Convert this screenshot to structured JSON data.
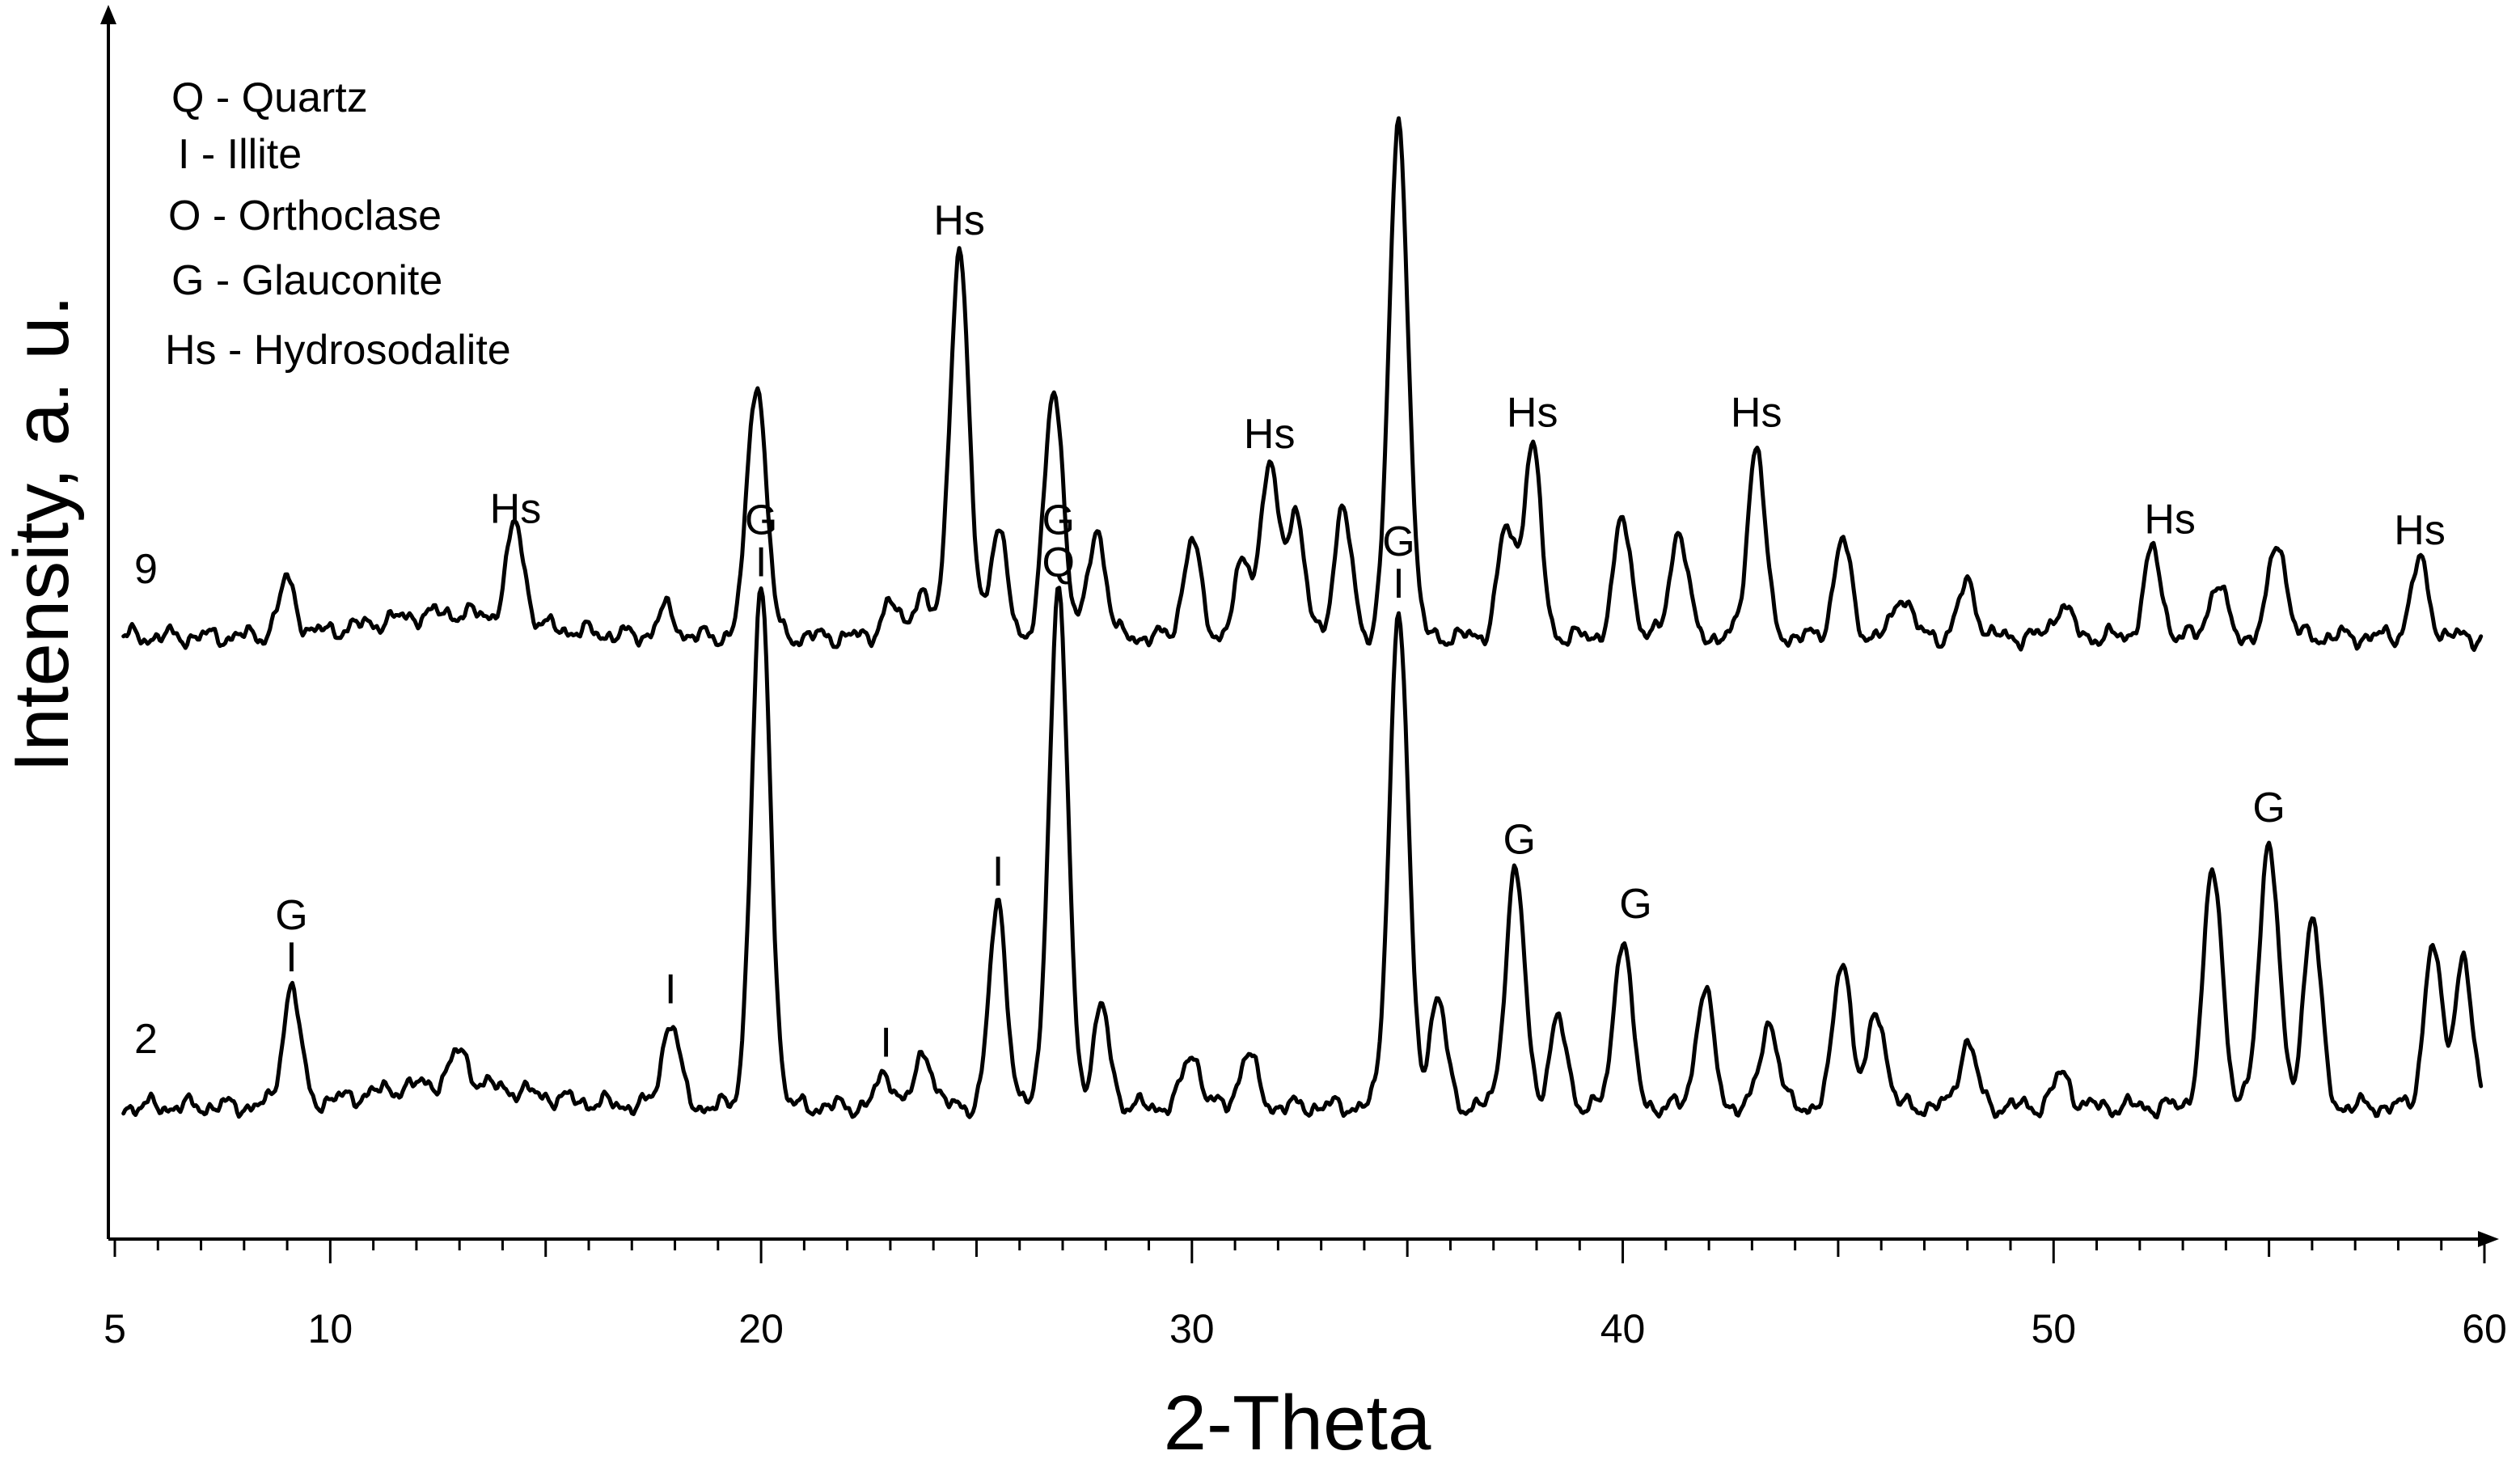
{
  "chart_data": {
    "type": "line",
    "xlabel": "2-Theta",
    "ylabel": "Intensity, a. u.",
    "xlim": [
      5,
      60
    ],
    "ylim": [
      0,
      100
    ],
    "x_ticks": [
      5,
      10,
      20,
      30,
      40,
      50,
      60
    ],
    "y_ticks_shown": false,
    "legend": {
      "position": "top-left",
      "entries": [
        "Q - Quartz",
        "I - Illite",
        "O - Orthoclase",
        "G - Glauconite",
        "Hs - Hydrosodalite"
      ]
    },
    "series": [
      {
        "name": "9",
        "baseline": 54,
        "peaks": [
          [
            9.0,
            5
          ],
          [
            14.3,
            9
          ],
          [
            17.8,
            2.5
          ],
          [
            19.9,
            24
          ],
          [
            23.0,
            3
          ],
          [
            23.7,
            4
          ],
          [
            24.6,
            36
          ],
          [
            25.5,
            10
          ],
          [
            26.8,
            23
          ],
          [
            27.8,
            10
          ],
          [
            30.0,
            9
          ],
          [
            31.2,
            7
          ],
          [
            31.8,
            16
          ],
          [
            32.4,
            12
          ],
          [
            33.5,
            12
          ],
          [
            34.8,
            48
          ],
          [
            37.3,
            10
          ],
          [
            37.9,
            18
          ],
          [
            40.0,
            11
          ],
          [
            41.3,
            10
          ],
          [
            43.1,
            18
          ],
          [
            45.1,
            9
          ],
          [
            46.5,
            4
          ],
          [
            48.0,
            5
          ],
          [
            50.2,
            3
          ],
          [
            52.3,
            8
          ],
          [
            53.8,
            5
          ],
          [
            55.2,
            9
          ],
          [
            58.5,
            7
          ]
        ],
        "annotations": [
          {
            "x": 14.3,
            "text": "Hs"
          },
          {
            "x": 24.6,
            "text": "Hs"
          },
          {
            "x": 31.8,
            "text": "Hs"
          },
          {
            "x": 37.9,
            "text": "Hs"
          },
          {
            "x": 43.1,
            "text": "Hs"
          },
          {
            "x": 52.7,
            "text": "Hs"
          },
          {
            "x": 58.5,
            "text": "Hs"
          }
        ]
      },
      {
        "name": "2",
        "baseline": 10,
        "peaks": [
          [
            9.1,
            11
          ],
          [
            13.0,
            3
          ],
          [
            17.9,
            8
          ],
          [
            20.0,
            48
          ],
          [
            22.9,
            3
          ],
          [
            23.8,
            5
          ],
          [
            25.5,
            19
          ],
          [
            26.9,
            48
          ],
          [
            27.9,
            9
          ],
          [
            30.0,
            5
          ],
          [
            31.3,
            5
          ],
          [
            34.8,
            46
          ],
          [
            35.7,
            10
          ],
          [
            37.5,
            22
          ],
          [
            38.5,
            8
          ],
          [
            40.0,
            16
          ],
          [
            41.9,
            11
          ],
          [
            43.4,
            8
          ],
          [
            45.1,
            14
          ],
          [
            45.9,
            9
          ],
          [
            48.0,
            6
          ],
          [
            50.2,
            3
          ],
          [
            53.7,
            22
          ],
          [
            55.0,
            25
          ],
          [
            56.0,
            18
          ],
          [
            58.8,
            15
          ],
          [
            59.5,
            14
          ]
        ],
        "annotations": [
          {
            "x": 9.1,
            "text": "G",
            "mark": "I"
          },
          {
            "x": 17.9,
            "text": "",
            "mark": "I"
          },
          {
            "x": 20.0,
            "text": "G",
            "mark": "I"
          },
          {
            "x": 22.9,
            "text": "",
            "mark": "I"
          },
          {
            "x": 25.5,
            "text": "",
            "mark": "I"
          },
          {
            "x": 26.9,
            "text": "G",
            "mark": "Q"
          },
          {
            "x": 34.8,
            "text": "G",
            "mark": "I"
          },
          {
            "x": 37.6,
            "text": "G"
          },
          {
            "x": 40.3,
            "text": "G"
          },
          {
            "x": 55.0,
            "text": "G"
          }
        ]
      }
    ]
  }
}
